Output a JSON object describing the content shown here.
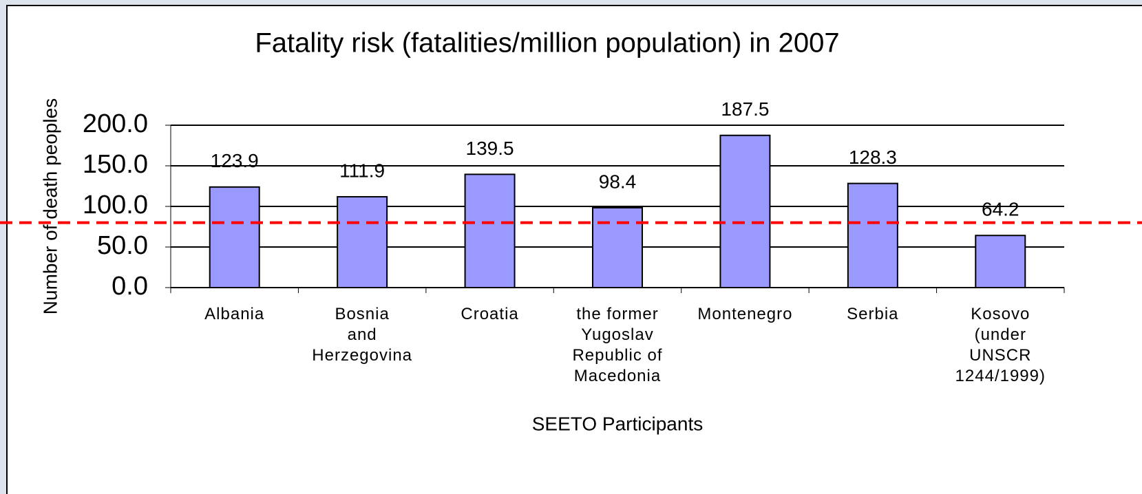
{
  "chart_data": {
    "type": "bar",
    "title": "Fatality risk (fatalities/million population) in 2007",
    "xlabel": "SEETO Participants",
    "ylabel": "Number of death peoples",
    "categories": [
      "Albania",
      "Bosnia\nand\nHerzegovina",
      "Croatia",
      "the former\nYugoslav\nRepublic of\nMacedonia",
      "Montenegro",
      "Serbia",
      "Kosovo\n(under\nUNSCR\n1244/1999)"
    ],
    "values": [
      123.9,
      111.9,
      139.5,
      98.4,
      187.5,
      128.3,
      64.2
    ],
    "color": "#9999ff",
    "ylim": [
      0,
      200
    ],
    "yticks": [
      {
        "value": 0,
        "label": "0.0"
      },
      {
        "value": 50,
        "label": "50.0"
      },
      {
        "value": 100,
        "label": "100.0"
      },
      {
        "value": 150,
        "label": "150.0"
      },
      {
        "value": 200,
        "label": "200.0"
      }
    ],
    "grid": true,
    "reference_line": 80,
    "reference_line_color": "#ff0000"
  }
}
